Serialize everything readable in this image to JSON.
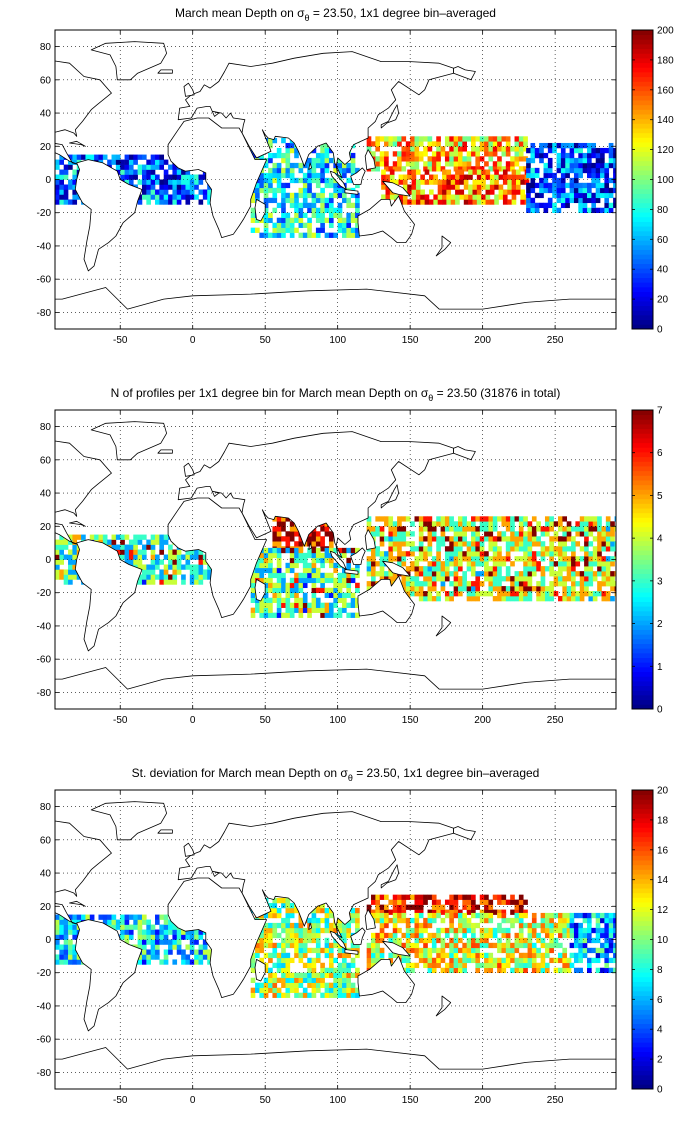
{
  "colors": {
    "colormap": "jet",
    "land": "#ffffff",
    "coastline": "#000000",
    "grid": "#000000",
    "background": "#ffffff"
  },
  "chart_data": [
    {
      "type": "heatmap",
      "title_parts": [
        "March mean Depth on σ",
        "θ",
        " = 23.50, 1x1 degree bin–averaged"
      ],
      "xlabel": "",
      "ylabel": "",
      "x_ticks": [
        "-50",
        "0",
        "50",
        "100",
        "150",
        "200",
        "250"
      ],
      "y_ticks": [
        "80",
        "60",
        "40",
        "20",
        "0",
        "-20",
        "-40",
        "-60",
        "-80"
      ],
      "xlim": [
        -95,
        292
      ],
      "ylim": [
        -90,
        90
      ],
      "grid": true,
      "colorbar": {
        "min": 0,
        "max": 200,
        "ticks": [
          "200",
          "180",
          "160",
          "140",
          "120",
          "100",
          "80",
          "60",
          "40",
          "20",
          "0"
        ]
      },
      "field": "depth",
      "regions": [
        {
          "name": "tropical Atlantic",
          "lon": [
            -95,
            15
          ],
          "lat": [
            -15,
            15
          ],
          "value": 45
        },
        {
          "name": "Indian Ocean",
          "lon": [
            40,
            115
          ],
          "lat": [
            -35,
            25
          ],
          "value": 75
        },
        {
          "name": "western Pacific north",
          "lon": [
            120,
            230
          ],
          "lat": [
            5,
            25
          ],
          "value": 135
        },
        {
          "name": "western Pacific south",
          "lon": [
            130,
            230
          ],
          "lat": [
            -15,
            5
          ],
          "value": 150
        },
        {
          "name": "eastern Pacific",
          "lon": [
            230,
            292
          ],
          "lat": [
            -20,
            20
          ],
          "value": 40
        }
      ]
    },
    {
      "type": "heatmap",
      "title_parts": [
        "N of profiles per 1x1 degree bin for March mean Depth on σ",
        "θ",
        " = 23.50 (31876 in total)"
      ],
      "xlabel": "",
      "ylabel": "",
      "x_ticks": [
        "-50",
        "0",
        "50",
        "100",
        "150",
        "200",
        "250"
      ],
      "y_ticks": [
        "80",
        "60",
        "40",
        "20",
        "0",
        "-20",
        "-40",
        "-60",
        "-80"
      ],
      "xlim": [
        -95,
        292
      ],
      "ylim": [
        -90,
        90
      ],
      "grid": true,
      "colorbar": {
        "min": 0,
        "max": 7,
        "ticks": [
          "7",
          "6",
          "5",
          "4",
          "3",
          "2",
          "1",
          "0"
        ]
      },
      "field": "count",
      "regions": [
        {
          "name": "tropical Atlantic",
          "lon": [
            -95,
            15
          ],
          "lat": [
            -15,
            15
          ],
          "value": 3
        },
        {
          "name": "Arabian Sea / Bay of Bengal",
          "lon": [
            55,
            95
          ],
          "lat": [
            5,
            25
          ],
          "value": 6
        },
        {
          "name": "Indian Ocean",
          "lon": [
            40,
            115
          ],
          "lat": [
            -35,
            5
          ],
          "value": 3
        },
        {
          "name": "Pacific",
          "lon": [
            120,
            292
          ],
          "lat": [
            -25,
            25
          ],
          "value": 4
        }
      ]
    },
    {
      "type": "heatmap",
      "title_parts": [
        "St. deviation for March mean Depth on σ",
        "θ",
        " = 23.50, 1x1 degree bin–averaged"
      ],
      "xlabel": "",
      "ylabel": "",
      "x_ticks": [
        "-50",
        "0",
        "50",
        "100",
        "150",
        "200",
        "250"
      ],
      "y_ticks": [
        "80",
        "60",
        "40",
        "20",
        "0",
        "-20",
        "-40",
        "-60",
        "-80"
      ],
      "xlim": [
        -95,
        292
      ],
      "ylim": [
        -90,
        90
      ],
      "grid": true,
      "colorbar": {
        "min": 0,
        "max": 20,
        "ticks": [
          "20",
          "18",
          "16",
          "14",
          "12",
          "10",
          "8",
          "6",
          "4",
          "2",
          "0"
        ]
      },
      "field": "std",
      "regions": [
        {
          "name": "tropical Atlantic",
          "lon": [
            -95,
            15
          ],
          "lat": [
            -15,
            15
          ],
          "value": 7
        },
        {
          "name": "Indian Ocean",
          "lon": [
            40,
            115
          ],
          "lat": [
            -35,
            25
          ],
          "value": 11
        },
        {
          "name": "western Pacific north",
          "lon": [
            120,
            230
          ],
          "lat": [
            15,
            25
          ],
          "value": 18
        },
        {
          "name": "Pacific equatorial",
          "lon": [
            120,
            260
          ],
          "lat": [
            -20,
            15
          ],
          "value": 12
        },
        {
          "name": "eastern Pacific",
          "lon": [
            260,
            292
          ],
          "lat": [
            -20,
            15
          ],
          "value": 6
        }
      ]
    }
  ]
}
